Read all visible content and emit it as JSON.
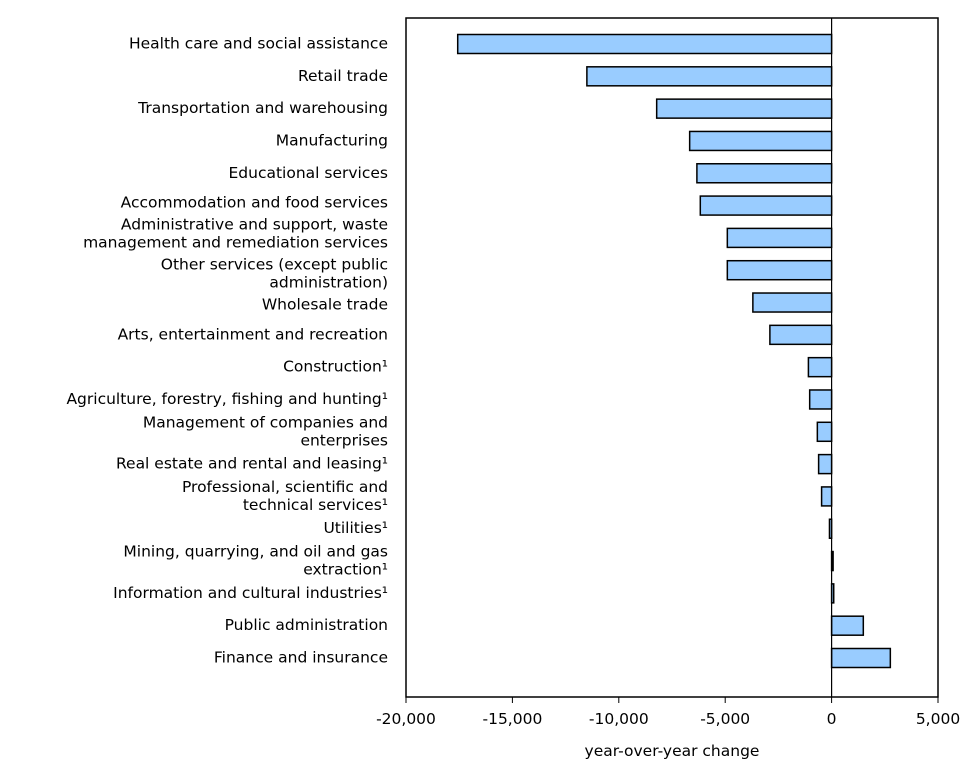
{
  "chart_data": {
    "type": "bar",
    "orientation": "horizontal",
    "xlabel": "year-over-year change",
    "xlim": [
      -20000,
      5000
    ],
    "xticks": [
      -20000,
      -15000,
      -10000,
      -5000,
      0,
      5000
    ],
    "xtick_labels": [
      "-20,000",
      "-15,000",
      "-10,000",
      "-5,000",
      "0",
      "5,000"
    ],
    "grid": false,
    "bar_color": "#99ccff",
    "categories": [
      [
        "Health care and social assistance"
      ],
      [
        "Retail trade"
      ],
      [
        "Transportation and warehousing"
      ],
      [
        "Manufacturing"
      ],
      [
        "Educational services"
      ],
      [
        "Accommodation and food services"
      ],
      [
        "Administrative and support, waste",
        "management and remediation services"
      ],
      [
        "Other services (except public",
        "administration)"
      ],
      [
        "Wholesale trade"
      ],
      [
        "Arts, entertainment and recreation"
      ],
      [
        "Construction¹"
      ],
      [
        "Agriculture, forestry, fishing and hunting¹"
      ],
      [
        "Management of companies and",
        "enterprises"
      ],
      [
        "Real estate and rental and leasing¹"
      ],
      [
        "Professional, scientific and",
        "technical services¹"
      ],
      [
        "Utilities¹"
      ],
      [
        "Mining, quarrying, and oil and gas",
        "extraction¹"
      ],
      [
        "Information and cultural industries¹"
      ],
      [
        "Public administration"
      ],
      [
        "Finance and insurance"
      ]
    ],
    "values": [
      -17570,
      -11500,
      -8220,
      -6670,
      -6330,
      -6170,
      -4900,
      -4900,
      -3700,
      -2900,
      -1090,
      -1030,
      -670,
      -610,
      -470,
      -100,
      40,
      100,
      1490,
      2760
    ]
  }
}
